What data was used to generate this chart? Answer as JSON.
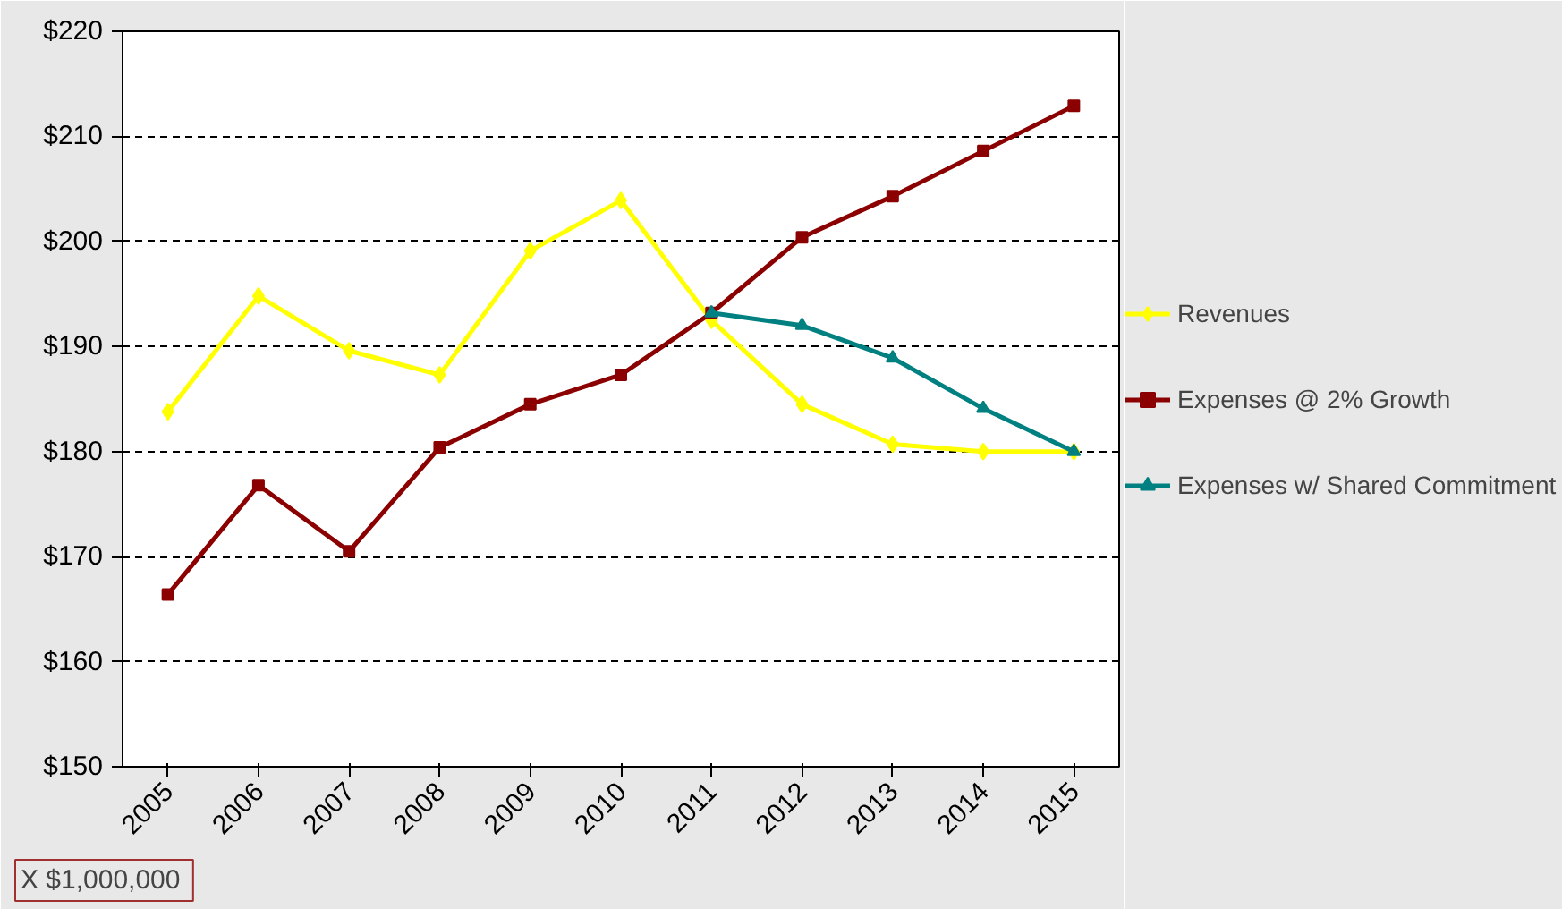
{
  "chart_data": {
    "type": "line",
    "categories": [
      "2005",
      "2006",
      "2007",
      "2008",
      "2009",
      "2010",
      "2011",
      "2012",
      "2013",
      "2014",
      "2015"
    ],
    "series": [
      {
        "name": "Revenues",
        "color": "#ffff00",
        "marker": "diamond",
        "values": [
          183.8,
          194.8,
          189.6,
          187.3,
          199.1,
          203.9,
          192.5,
          184.5,
          180.7,
          180.0,
          180.0
        ]
      },
      {
        "name": "Expenses @ 2% Growth",
        "color": "#8b0000",
        "marker": "square",
        "values": [
          166.4,
          176.8,
          170.5,
          180.4,
          184.5,
          187.3,
          193.2,
          200.4,
          204.3,
          208.6,
          212.9
        ]
      },
      {
        "name": "Expenses w/ Shared Commitment",
        "color": "#008080",
        "marker": "triangle",
        "values": [
          null,
          null,
          null,
          null,
          null,
          null,
          193.2,
          192.0,
          188.9,
          184.1,
          180.0
        ]
      }
    ],
    "ylim": [
      150,
      220
    ],
    "yticks": [
      {
        "value": 150,
        "label": "$150"
      },
      {
        "value": 160,
        "label": "$160"
      },
      {
        "value": 170,
        "label": "$170"
      },
      {
        "value": 180,
        "label": "$180"
      },
      {
        "value": 190,
        "label": "$190"
      },
      {
        "value": 200,
        "label": "$200"
      },
      {
        "value": 210,
        "label": "$210"
      },
      {
        "value": 220,
        "label": "$220"
      }
    ],
    "grid": "y",
    "legend": "right",
    "line_style": "solid",
    "annotations": [
      "X  $1,000,000"
    ]
  }
}
